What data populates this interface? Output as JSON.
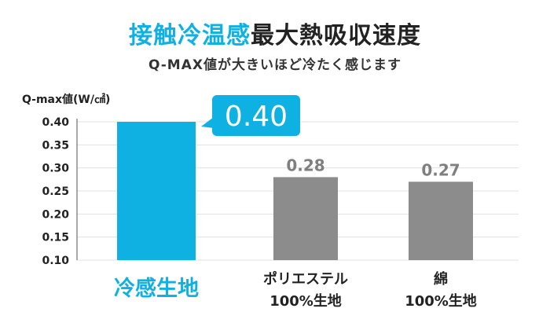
{
  "header": {
    "title_accent": "接触冷温感",
    "title_rest": "最大熱吸収速度",
    "subtitle": "Q-MAX値が大きいほど冷たく感じます"
  },
  "colors": {
    "accent": "#0fb1e3",
    "bar_gray": "#8c8c8c",
    "value_gray": "#7f7f7f",
    "grid": "#e0e0e0",
    "axis": "#555555"
  },
  "chart_data": {
    "type": "bar",
    "title": "接触冷温感最大熱吸収速度",
    "subtitle": "Q-MAX値が大きいほど冷たく感じます",
    "ylabel": "Q-max値(W/㎠)",
    "ylim": [
      0.1,
      0.4
    ],
    "yticks": [
      "0.40",
      "0.35",
      "0.30",
      "0.25",
      "0.20",
      "0.15",
      "0.10"
    ],
    "grid": true,
    "categories": [
      {
        "line1": "冷感生地",
        "line2": ""
      },
      {
        "line1": "ポリエステル",
        "line2": "100%生地"
      },
      {
        "line1": "綿",
        "line2": "100%生地"
      }
    ],
    "values": [
      0.4,
      0.28,
      0.27
    ],
    "value_labels": [
      "0.40",
      "0.28",
      "0.27"
    ],
    "highlight_index": 0
  }
}
